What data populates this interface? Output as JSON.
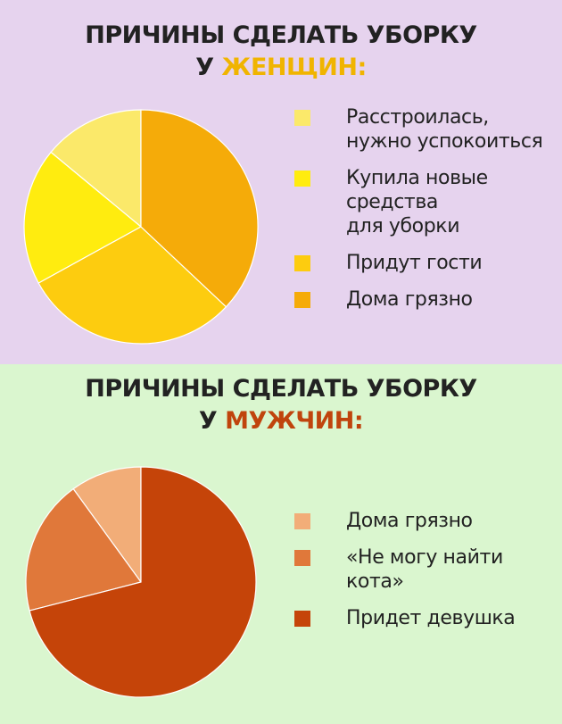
{
  "women": {
    "title_line1": "ПРИЧИНЫ СДЕЛАТЬ УБОРКУ",
    "title_prefix": "У ",
    "title_highlight": "ЖЕНЩИН:",
    "highlight_color": "#f0b400"
  },
  "men": {
    "title_line1": "ПРИЧИНЫ СДЕЛАТЬ УБОРКУ",
    "title_prefix": "У ",
    "title_highlight": "МУЖЧИН:",
    "highlight_color": "#c0440d"
  },
  "chart_data": [
    {
      "type": "pie",
      "title": "ПРИЧИНЫ СДЕЛАТЬ УБОРКУ У ЖЕНЩИН:",
      "legend_position": "right",
      "slices": [
        {
          "label": "Расстроилась,\nнужно успокоиться",
          "value": 14,
          "color": "#fbe96a"
        },
        {
          "label": "Купила новые\nсредства\nдля уборки",
          "value": 19,
          "color": "#ffec0f"
        },
        {
          "label": "Придут гости",
          "value": 30,
          "color": "#fdcc0f"
        },
        {
          "label": "Дома грязно",
          "value": 37,
          "color": "#f5ab09"
        }
      ]
    },
    {
      "type": "pie",
      "title": "ПРИЧИНЫ СДЕЛАТЬ УБОРКУ У МУЖЧИН:",
      "legend_position": "right",
      "slices": [
        {
          "label": "Дома грязно",
          "value": 10,
          "color": "#f2ad78"
        },
        {
          "label": "«Не могу найти\nкота»",
          "value": 19,
          "color": "#e0783a"
        },
        {
          "label": "Придет девушка",
          "value": 71,
          "color": "#c54409"
        }
      ]
    }
  ]
}
